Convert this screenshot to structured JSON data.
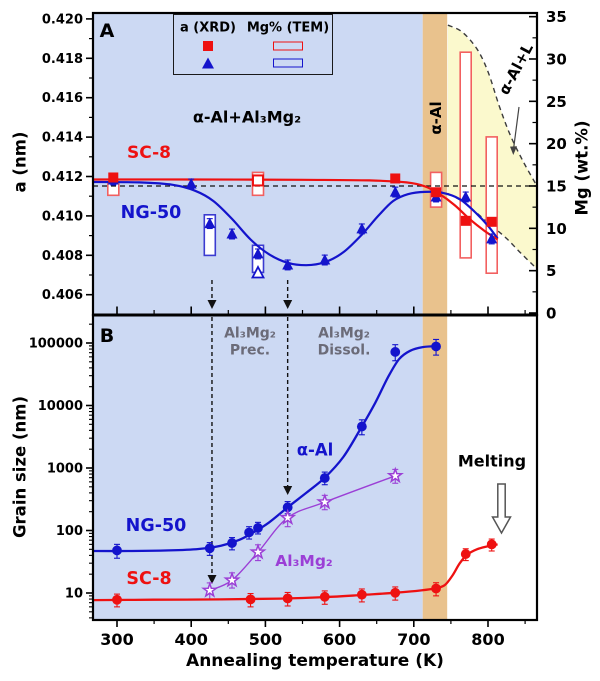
{
  "figure": {
    "panel_a": "A",
    "panel_b": "B",
    "labels": {
      "sc8_a": "SC-8",
      "ng50_a": "NG-50",
      "phase_main": "α-Al+Al₃Mg₂",
      "phase_alpha": "α-Al",
      "phase_alpha_l": "α-Al+L",
      "ng50_b": "NG-50",
      "sc8_b": "SC-8",
      "alpha_al_b": "α-Al",
      "al3mg2_b": "Al₃Mg₂",
      "prec_line1": "Al₃Mg₂",
      "prec_line2": "Prec.",
      "dissol_line1": "Al₃Mg₂",
      "dissol_line2": "Dissol.",
      "melting": "Melting"
    },
    "legend": {
      "col1_header": "a (XRD)",
      "col2_header": "Mg% (TEM)"
    },
    "axes": {
      "x_title": "Annealing temperature (K)",
      "a_title": "a (nm)",
      "mg_title": "Mg (wt.%)",
      "grain_title": "Grain size (nm)"
    }
  },
  "colors": {
    "red": "#ee1111",
    "blue": "#1414cc",
    "purple": "#9b3fd6",
    "bg_blue": "#ccd9f3",
    "tan": "#e9c28d",
    "yellow": "#fbf9cd",
    "gray_text": "#6b6b78",
    "dash_gray": "#3c3c3c",
    "rect_red": "#f26060",
    "rect_blue": "#3b3bd0"
  },
  "chart_data": [
    {
      "panel": "A",
      "type": "line",
      "x": {
        "label": "Annealing temperature (K)",
        "range": [
          268,
          866
        ],
        "major_ticks": [
          300,
          400,
          500,
          600,
          700,
          800
        ],
        "minor_ticks": [
          350,
          450,
          550,
          650,
          750,
          850
        ]
      },
      "y_left": {
        "label": "a (nm)",
        "range": [
          0.4049,
          0.4203
        ],
        "major_ticks": [
          0.406,
          0.408,
          0.41,
          0.412,
          0.414,
          0.416,
          0.418,
          0.42
        ],
        "minor_ticks": [
          0.407,
          0.409,
          0.411,
          0.413,
          0.415,
          0.417,
          0.419
        ]
      },
      "y_right": {
        "label": "Mg (wt.%)",
        "range": [
          0,
          35.4
        ],
        "major_ticks": [
          0,
          5,
          10,
          15,
          20,
          25,
          30,
          35
        ],
        "minor_ticks": [
          2.5,
          7.5,
          12.5,
          17.5,
          22.5,
          27.5,
          32.5
        ]
      },
      "dashed_reference_mg": 15,
      "regions": {
        "blue_end_K": 712,
        "tan_end_K": 745
      },
      "annotation_arrows_K": [
        428,
        530
      ],
      "series": [
        {
          "name": "SC-8 a (XRD)",
          "color_key": "red",
          "marker": "square",
          "err": 0.0002,
          "points": [
            [
              295,
              0.41195
            ],
            [
              675,
              0.4119
            ],
            [
              730,
              0.4112
            ],
            [
              770,
              0.40975
            ],
            [
              805,
              0.4097
            ]
          ],
          "open_points": [
            [
              490,
              0.4118
            ]
          ],
          "curve": [
            [
              268,
              0.41185
            ],
            [
              400,
              0.41185
            ],
            [
              550,
              0.41183
            ],
            [
              640,
              0.4118
            ],
            [
              690,
              0.4117
            ],
            [
              715,
              0.4115
            ],
            [
              735,
              0.4111
            ],
            [
              755,
              0.41055
            ],
            [
              775,
              0.40985
            ],
            [
              795,
              0.40925
            ],
            [
              813,
              0.4088
            ]
          ]
        },
        {
          "name": "NG-50 a (XRD)",
          "color_key": "blue",
          "marker": "triangle",
          "err": 0.00025,
          "points": [
            [
              295,
              0.41182
            ],
            [
              400,
              0.41162
            ],
            [
              425,
              0.40961
            ],
            [
              455,
              0.40908
            ],
            [
              490,
              0.40807
            ],
            [
              530,
              0.40751
            ],
            [
              580,
              0.40776
            ],
            [
              630,
              0.40934
            ],
            [
              675,
              0.41121
            ],
            [
              730,
              0.41096
            ],
            [
              770,
              0.41096
            ],
            [
              805,
              0.40883
            ]
          ],
          "open_points": [
            [
              490,
              0.4071
            ]
          ],
          "curve": [
            [
              268,
              0.41172
            ],
            [
              330,
              0.4117
            ],
            [
              375,
              0.41158
            ],
            [
              405,
              0.41128
            ],
            [
              430,
              0.41075
            ],
            [
              455,
              0.40985
            ],
            [
              480,
              0.4088
            ],
            [
              505,
              0.40805
            ],
            [
              530,
              0.40762
            ],
            [
              555,
              0.4075
            ],
            [
              580,
              0.40765
            ],
            [
              605,
              0.40815
            ],
            [
              630,
              0.40905
            ],
            [
              652,
              0.41
            ],
            [
              672,
              0.41075
            ],
            [
              692,
              0.4111
            ],
            [
              715,
              0.41122
            ],
            [
              738,
              0.41118
            ],
            [
              762,
              0.41085
            ],
            [
              785,
              0.4101
            ],
            [
              800,
              0.4095
            ],
            [
              813,
              0.40885
            ]
          ]
        },
        {
          "name": "SC-8 Mg% (TEM)",
          "color_key": "rect_red",
          "marker": "rect",
          "rects": [
            [
              295,
              13.9,
              15.5
            ],
            [
              490,
              13.9,
              16.6
            ],
            [
              730,
              12.5,
              16.6
            ],
            [
              770,
              6.5,
              30.8
            ],
            [
              805,
              4.7,
              20.8
            ]
          ]
        },
        {
          "name": "NG-50 Mg% (TEM)",
          "color_key": "rect_blue",
          "marker": "rect",
          "rects": [
            [
              425,
              6.8,
              11.6
            ],
            [
              490,
              4.8,
              8.0
            ]
          ]
        }
      ],
      "phase_boundary": {
        "upper": [
          [
            746,
            34
          ],
          [
            765,
            33.2
          ],
          [
            785,
            31.2
          ],
          [
            800,
            28.5
          ],
          [
            815,
            24.5
          ],
          [
            830,
            21
          ],
          [
            848,
            17.8
          ],
          [
            866,
            15
          ]
        ],
        "lower": [
          [
            746,
            14.1
          ],
          [
            765,
            13.2
          ],
          [
            785,
            11.8
          ],
          [
            805,
            10.3
          ],
          [
            825,
            8.8
          ],
          [
            845,
            7.0
          ],
          [
            866,
            5.2
          ]
        ]
      }
    },
    {
      "panel": "B",
      "type": "line",
      "y_scale": "log",
      "y": {
        "label": "Grain size (nm)",
        "range": [
          3.7,
          280000
        ],
        "major_ticks": [
          10,
          100,
          1000,
          10000,
          100000
        ]
      },
      "regions": {
        "blue_end_K": 712,
        "tan_end_K": 745
      },
      "annotation_arrows_K": [
        428,
        530
      ],
      "series": [
        {
          "name": "NG-50",
          "color_key": "blue",
          "marker": "circle",
          "points": [
            [
              300,
              48,
              12,
              12
            ],
            [
              425,
              52,
              12,
              12
            ],
            [
              455,
              63,
              14,
              14
            ],
            [
              478,
              93,
              20,
              22
            ],
            [
              490,
              110,
              22,
              25
            ],
            [
              530,
              235,
              50,
              55
            ],
            [
              580,
              690,
              150,
              170
            ],
            [
              630,
              4600,
              1200,
              1300
            ],
            [
              675,
              72000,
              20000,
              22000
            ],
            [
              730,
              88000,
              24000,
              26000
            ]
          ],
          "curve": [
            [
              268,
              47
            ],
            [
              320,
              47
            ],
            [
              370,
              48
            ],
            [
              410,
              50.5
            ],
            [
              440,
              57
            ],
            [
              465,
              71
            ],
            [
              485,
              95
            ],
            [
              505,
              135
            ],
            [
              530,
              235
            ],
            [
              555,
              400
            ],
            [
              580,
              700
            ],
            [
              605,
              1500
            ],
            [
              628,
              4200
            ],
            [
              648,
              11000
            ],
            [
              665,
              28000
            ],
            [
              680,
              55000
            ],
            [
              695,
              75000
            ],
            [
              712,
              86000
            ],
            [
              732,
              89000
            ]
          ]
        },
        {
          "name": "SC-8",
          "color_key": "red",
          "marker": "circle",
          "points": [
            [
              300,
              7.8,
              1.8,
              1.8
            ],
            [
              480,
              7.9,
              1.9,
              1.9
            ],
            [
              530,
              8.2,
              2.0,
              2.0
            ],
            [
              580,
              8.7,
              2.1,
              2.1
            ],
            [
              630,
              9.4,
              2.2,
              2.2
            ],
            [
              675,
              10.1,
              2.4,
              2.4
            ],
            [
              730,
              11.8,
              2.8,
              2.8
            ],
            [
              770,
              42,
              9,
              9
            ],
            [
              805,
              60,
              13,
              13
            ]
          ],
          "curve": [
            [
              268,
              7.7
            ],
            [
              350,
              7.8
            ],
            [
              440,
              7.9
            ],
            [
              520,
              8.15
            ],
            [
              580,
              8.6
            ],
            [
              630,
              9.3
            ],
            [
              675,
              10.1
            ],
            [
              710,
              11
            ],
            [
              730,
              11.9
            ],
            [
              742,
              13.5
            ],
            [
              752,
              19
            ],
            [
              762,
              30
            ],
            [
              772,
              41
            ],
            [
              785,
              50
            ],
            [
              800,
              56
            ],
            [
              813,
              60
            ]
          ]
        },
        {
          "name": "Al₃Mg₂",
          "color_key": "purple",
          "marker": "star",
          "points": [
            [
              425,
              11,
              3,
              3.5
            ],
            [
              455,
              16,
              4,
              5
            ],
            [
              490,
              45,
              12,
              14
            ],
            [
              530,
              160,
              45,
              50
            ],
            [
              580,
              285,
              70,
              80
            ],
            [
              675,
              750,
              180,
              200
            ]
          ]
        }
      ]
    }
  ]
}
